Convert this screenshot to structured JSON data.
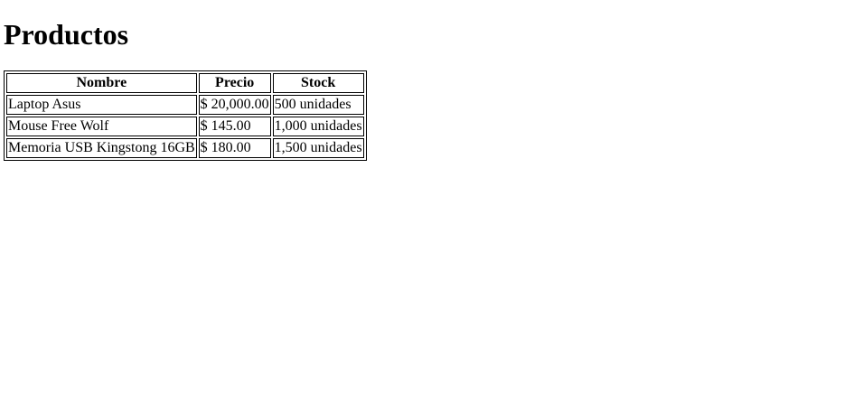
{
  "page": {
    "title": "Productos"
  },
  "table": {
    "headers": [
      "Nombre",
      "Precio",
      "Stock"
    ],
    "rows": [
      [
        "Laptop Asus",
        "$ 20,000.00",
        "500 unidades"
      ],
      [
        "Mouse Free Wolf",
        "$ 145.00",
        "1,000 unidades"
      ],
      [
        "Memoria USB Kingstong 16GB",
        "$ 180.00",
        "1,500 unidades"
      ]
    ]
  }
}
